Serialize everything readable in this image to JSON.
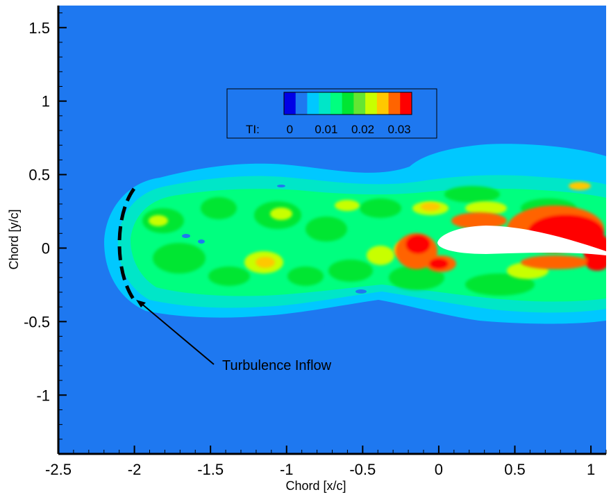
{
  "chart_data": {
    "type": "heatmap",
    "subtype": "filled-contour",
    "xlabel": "Chord [x/c]",
    "ylabel": "Chord [y/c]",
    "xlim": [
      -2.5,
      1.1
    ],
    "ylim": [
      -1.4,
      1.65
    ],
    "xticks": [
      -2.5,
      -2,
      -1.5,
      -1,
      -0.5,
      0,
      0.5,
      1
    ],
    "xtick_labels": [
      "-2.5",
      "-2",
      "-1.5",
      "-1",
      "-0.5",
      "0",
      "0.5",
      "1"
    ],
    "yticks": [
      1.5,
      1,
      0.5,
      0,
      -0.5,
      -1
    ],
    "ytick_labels": [
      "1.5",
      "1",
      "0.5",
      "0",
      "-0.5",
      "-1"
    ],
    "grid": false,
    "legend": {
      "placement": "top-center",
      "variable_label": "TI:",
      "tick_labels": [
        "0",
        "0.01",
        "0.02",
        "0.03"
      ],
      "tick_values": [
        0,
        0.01,
        0.02,
        0.03
      ],
      "levels": [
        0,
        0.0035,
        0.007,
        0.0105,
        0.014,
        0.0175,
        0.021,
        0.0245,
        0.028,
        0.0315,
        0.035
      ],
      "colors": [
        "#0000e6",
        "#1e78f0",
        "#00c8ff",
        "#00e6c8",
        "#00ff7f",
        "#00e632",
        "#64e632",
        "#c8ff00",
        "#ffc800",
        "#ff6400",
        "#ff0000"
      ]
    },
    "background_color": "#1e78f0",
    "annotation": {
      "text": "Turbulence Inflow",
      "arrow_to": [
        -2.0,
        -0.4
      ],
      "text_at": [
        -1.45,
        -0.85
      ]
    },
    "inflow_boundary": {
      "style": "dashed arc",
      "color": "#000000",
      "x_range": [
        -2.1,
        -2.0
      ],
      "y_range": [
        -0.4,
        0.38
      ]
    },
    "airfoil": {
      "leading_edge_x": 0.0,
      "trailing_edge_x": 1.0,
      "chord_y": 0.0,
      "color": "#ffffff"
    }
  }
}
